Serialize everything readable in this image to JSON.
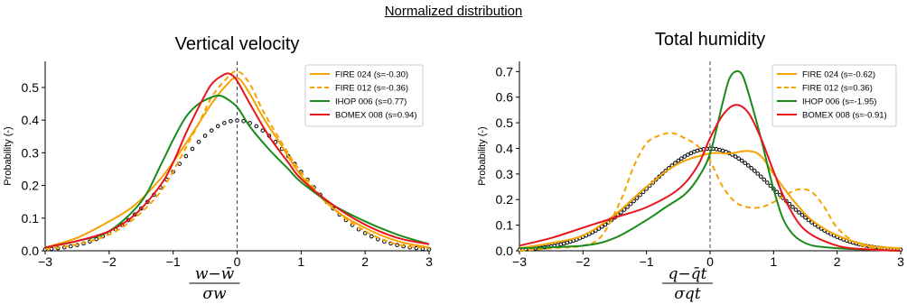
{
  "suptitle": "Normalized distribution",
  "colors": {
    "fire024": "#f5a300",
    "fire012": "#f5a300",
    "ihop": "#1a8a1a",
    "bomex": "#e8141c",
    "gauss": "#000000"
  },
  "chart_data": [
    {
      "type": "line",
      "title": "Vertical velocity",
      "ylabel": "Probability (-)",
      "xlabel_num": "w−w̄",
      "xlabel_den": "σw",
      "xlim": [
        -3,
        3
      ],
      "ylim": [
        0,
        0.58
      ],
      "xticks": [
        -3,
        -2,
        -1,
        0,
        1,
        2,
        3
      ],
      "yticks": [
        0.0,
        0.1,
        0.2,
        0.3,
        0.4,
        0.5
      ],
      "legend_position": "top-right",
      "reference": {
        "name": "gaussian",
        "style": "open circles",
        "mean": 0,
        "sd": 1
      },
      "series": [
        {
          "name": "FIRE 024 (s=-0.30)",
          "style": "solid",
          "color_key": "fire024",
          "x": [
            -3,
            -2.5,
            -2,
            -1.6,
            -1.2,
            -0.9,
            -0.6,
            -0.4,
            -0.2,
            0,
            0.2,
            0.4,
            0.7,
            1,
            1.5,
            2,
            2.5,
            3
          ],
          "y": [
            0.01,
            0.04,
            0.09,
            0.14,
            0.22,
            0.3,
            0.39,
            0.45,
            0.5,
            0.53,
            0.48,
            0.41,
            0.32,
            0.23,
            0.13,
            0.07,
            0.03,
            0.01
          ]
        },
        {
          "name": "FIRE 012 (s=-0.36)",
          "style": "dashed",
          "color_key": "fire012",
          "x": [
            -3,
            -2.5,
            -2,
            -1.6,
            -1.2,
            -0.9,
            -0.6,
            -0.4,
            -0.2,
            0,
            0.2,
            0.4,
            0.7,
            1,
            1.5,
            2,
            2.5,
            3
          ],
          "y": [
            0.005,
            0.02,
            0.05,
            0.1,
            0.18,
            0.28,
            0.39,
            0.47,
            0.52,
            0.55,
            0.51,
            0.43,
            0.33,
            0.24,
            0.13,
            0.06,
            0.02,
            0.008
          ]
        },
        {
          "name": "IHOP 006 (s=0.77)",
          "style": "solid",
          "color_key": "ihop",
          "x": [
            -3,
            -2.5,
            -2,
            -1.5,
            -1.2,
            -1,
            -0.8,
            -0.6,
            -0.4,
            -0.3,
            -0.2,
            0,
            0.2,
            0.5,
            0.8,
            1,
            1.5,
            2,
            2.5,
            3
          ],
          "y": [
            0.01,
            0.03,
            0.06,
            0.15,
            0.26,
            0.34,
            0.41,
            0.45,
            0.47,
            0.475,
            0.47,
            0.44,
            0.38,
            0.31,
            0.25,
            0.21,
            0.14,
            0.09,
            0.05,
            0.02
          ]
        },
        {
          "name": "BOMEX 008 (s=0.94)",
          "style": "solid",
          "color_key": "bomex",
          "x": [
            -3,
            -2.5,
            -2,
            -1.6,
            -1.2,
            -1,
            -0.8,
            -0.6,
            -0.4,
            -0.2,
            -0.1,
            0,
            0.2,
            0.5,
            0.8,
            1,
            1.5,
            2,
            2.5,
            3
          ],
          "y": [
            0.01,
            0.03,
            0.06,
            0.11,
            0.2,
            0.27,
            0.36,
            0.44,
            0.51,
            0.54,
            0.54,
            0.52,
            0.45,
            0.35,
            0.27,
            0.22,
            0.14,
            0.08,
            0.04,
            0.02
          ]
        }
      ]
    },
    {
      "type": "line",
      "title": "Total humidity",
      "ylabel": "Probability (-)",
      "xlabel_num": "q−q̄t",
      "xlabel_den": "σqt",
      "xlim": [
        -3,
        3
      ],
      "ylim": [
        0,
        0.74
      ],
      "xticks": [
        -3,
        -2,
        -1,
        0,
        1,
        2,
        3
      ],
      "yticks": [
        0.0,
        0.1,
        0.2,
        0.3,
        0.4,
        0.5,
        0.6,
        0.7
      ],
      "legend_position": "top-right",
      "reference": {
        "name": "gaussian",
        "style": "open circles",
        "mean": 0,
        "sd": 1
      },
      "series": [
        {
          "name": "FIRE 024 (s=-0.62)",
          "style": "solid",
          "color_key": "fire024",
          "x": [
            -3,
            -2.5,
            -2,
            -1.5,
            -1,
            -0.5,
            0,
            0.3,
            0.6,
            0.8,
            1,
            1.3,
            1.6,
            2,
            2.5,
            3
          ],
          "y": [
            0.01,
            0.03,
            0.06,
            0.14,
            0.25,
            0.34,
            0.38,
            0.38,
            0.39,
            0.37,
            0.3,
            0.2,
            0.12,
            0.06,
            0.02,
            0.01
          ]
        },
        {
          "name": "FIRE 012 (s=0.36)",
          "style": "dashed",
          "color_key": "fire012",
          "x": [
            -3,
            -2.5,
            -2,
            -1.7,
            -1.4,
            -1.2,
            -1,
            -0.8,
            -0.6,
            -0.4,
            -0.2,
            0,
            0.2,
            0.4,
            0.6,
            0.8,
            1,
            1.2,
            1.4,
            1.6,
            1.8,
            2,
            2.3,
            2.6,
            3
          ],
          "y": [
            0.0,
            0.01,
            0.02,
            0.06,
            0.2,
            0.33,
            0.42,
            0.45,
            0.46,
            0.44,
            0.41,
            0.35,
            0.25,
            0.19,
            0.17,
            0.17,
            0.19,
            0.22,
            0.24,
            0.23,
            0.17,
            0.09,
            0.03,
            0.01,
            0.0
          ]
        },
        {
          "name": "IHOP 006 (s=-1.95)",
          "style": "solid",
          "color_key": "ihop",
          "x": [
            -3,
            -2,
            -1.5,
            -1,
            -0.7,
            -0.4,
            -0.2,
            0,
            0.2,
            0.3,
            0.4,
            0.5,
            0.6,
            0.8,
            1,
            1.2,
            1.5,
            2,
            3
          ],
          "y": [
            0.01,
            0.02,
            0.05,
            0.12,
            0.17,
            0.22,
            0.28,
            0.38,
            0.58,
            0.67,
            0.7,
            0.69,
            0.62,
            0.44,
            0.24,
            0.1,
            0.03,
            0.01,
            0.0
          ]
        },
        {
          "name": "BOMEX 008 (s=-0.91)",
          "style": "solid",
          "color_key": "bomex",
          "x": [
            -3,
            -2.5,
            -2,
            -1.5,
            -1,
            -0.5,
            -0.2,
            0,
            0.2,
            0.4,
            0.6,
            0.8,
            1,
            1.2,
            1.5,
            2,
            2.5,
            3
          ],
          "y": [
            0.02,
            0.05,
            0.09,
            0.13,
            0.17,
            0.24,
            0.33,
            0.44,
            0.53,
            0.57,
            0.54,
            0.44,
            0.31,
            0.19,
            0.08,
            0.02,
            0.005,
            0.0
          ]
        }
      ]
    }
  ]
}
